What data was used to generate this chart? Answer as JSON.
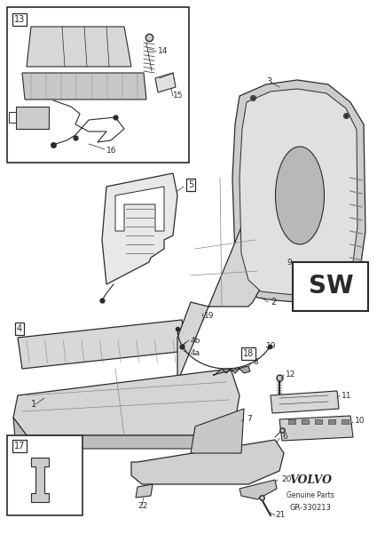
{
  "bg_color": "#ffffff",
  "line_color": "#2a2a2a",
  "volvo_text": "VOLVO",
  "genuine_parts": "Genuine Parts",
  "part_number": "GR-330213",
  "sw_label": "SW"
}
